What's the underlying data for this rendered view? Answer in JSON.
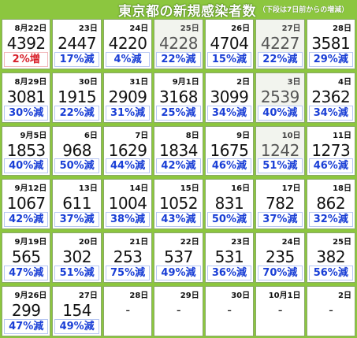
{
  "header": {
    "title": "東京都の新規感染者数",
    "note": "（下段は7日前からの増減）"
  },
  "colors": {
    "background": "#8cc63f",
    "decrease_text": "#1a3fd6",
    "increase_text": "#d8202a"
  },
  "calendar": [
    {
      "date": "8月22日",
      "cases": "4392",
      "change": "2%増",
      "dir": "up"
    },
    {
      "date": "23日",
      "cases": "2447",
      "change": "17%減",
      "dir": "down"
    },
    {
      "date": "24日",
      "cases": "4220",
      "change": "4%減",
      "dir": "down"
    },
    {
      "date": "25日",
      "cases": "4228",
      "change": "22%減",
      "dir": "down",
      "faded": true
    },
    {
      "date": "26日",
      "cases": "4704",
      "change": "15%減",
      "dir": "down"
    },
    {
      "date": "27日",
      "cases": "4227",
      "change": "22%減",
      "dir": "down",
      "faded": true
    },
    {
      "date": "28日",
      "cases": "3581",
      "change": "29%減",
      "dir": "down"
    },
    {
      "date": "8月29日",
      "cases": "3081",
      "change": "30%減",
      "dir": "down"
    },
    {
      "date": "30日",
      "cases": "1915",
      "change": "22%減",
      "dir": "down"
    },
    {
      "date": "31日",
      "cases": "2909",
      "change": "31%減",
      "dir": "down"
    },
    {
      "date": "9月1日",
      "cases": "3168",
      "change": "25%減",
      "dir": "down"
    },
    {
      "date": "2日",
      "cases": "3099",
      "change": "34%減",
      "dir": "down"
    },
    {
      "date": "3日",
      "cases": "2539",
      "change": "40%減",
      "dir": "down",
      "faded": true
    },
    {
      "date": "4日",
      "cases": "2362",
      "change": "34%減",
      "dir": "down"
    },
    {
      "date": "9月5日",
      "cases": "1853",
      "change": "40%減",
      "dir": "down"
    },
    {
      "date": "6日",
      "cases": "968",
      "change": "50%減",
      "dir": "down"
    },
    {
      "date": "7日",
      "cases": "1629",
      "change": "44%減",
      "dir": "down"
    },
    {
      "date": "8日",
      "cases": "1834",
      "change": "42%減",
      "dir": "down"
    },
    {
      "date": "9日",
      "cases": "1675",
      "change": "46%減",
      "dir": "down"
    },
    {
      "date": "10日",
      "cases": "1242",
      "change": "51%減",
      "dir": "down",
      "faded": true
    },
    {
      "date": "11日",
      "cases": "1273",
      "change": "46%減",
      "dir": "down"
    },
    {
      "date": "9月12日",
      "cases": "1067",
      "change": "42%減",
      "dir": "down"
    },
    {
      "date": "13日",
      "cases": "611",
      "change": "37%減",
      "dir": "down"
    },
    {
      "date": "14日",
      "cases": "1004",
      "change": "38%減",
      "dir": "down"
    },
    {
      "date": "15日",
      "cases": "1052",
      "change": "43%減",
      "dir": "down"
    },
    {
      "date": "16日",
      "cases": "831",
      "change": "50%減",
      "dir": "down"
    },
    {
      "date": "17日",
      "cases": "782",
      "change": "37%減",
      "dir": "down"
    },
    {
      "date": "18日",
      "cases": "862",
      "change": "32%減",
      "dir": "down"
    },
    {
      "date": "9月19日",
      "cases": "565",
      "change": "47%減",
      "dir": "down"
    },
    {
      "date": "20日",
      "cases": "302",
      "change": "51%減",
      "dir": "down"
    },
    {
      "date": "21日",
      "cases": "253",
      "change": "75%減",
      "dir": "down"
    },
    {
      "date": "22日",
      "cases": "537",
      "change": "49%減",
      "dir": "down"
    },
    {
      "date": "23日",
      "cases": "531",
      "change": "36%減",
      "dir": "down"
    },
    {
      "date": "24日",
      "cases": "235",
      "change": "70%減",
      "dir": "down"
    },
    {
      "date": "25日",
      "cases": "382",
      "change": "56%減",
      "dir": "down"
    },
    {
      "date": "9月26日",
      "cases": "299",
      "change": "47%減",
      "dir": "down"
    },
    {
      "date": "27日",
      "cases": "154",
      "change": "49%減",
      "dir": "down"
    },
    {
      "date": "28日",
      "cases": "-",
      "change": "",
      "dir": "none"
    },
    {
      "date": "29日",
      "cases": "-",
      "change": "",
      "dir": "none"
    },
    {
      "date": "30日",
      "cases": "-",
      "change": "",
      "dir": "none"
    },
    {
      "date": "10月1日",
      "cases": "-",
      "change": "",
      "dir": "none"
    },
    {
      "date": "2日",
      "cases": "-",
      "change": "",
      "dir": "none"
    }
  ]
}
